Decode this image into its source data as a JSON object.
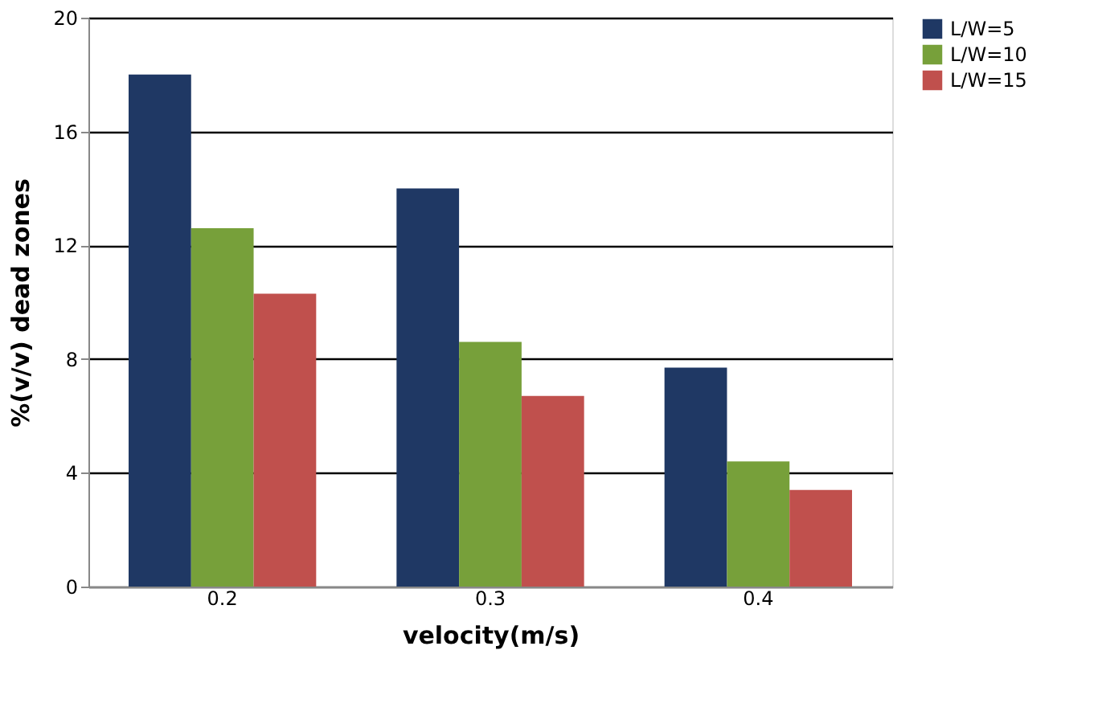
{
  "chart_data": {
    "type": "bar",
    "xlabel": "velocity(m/s)",
    "ylabel": "%(v/v)  dead zones",
    "categories": [
      "0.2",
      "0.3",
      "0.4"
    ],
    "series": [
      {
        "name": "L/W=5",
        "color": "#1f3864",
        "values": [
          18.0,
          14.0,
          7.7
        ]
      },
      {
        "name": "L/W=10",
        "color": "#77a03a",
        "values": [
          12.6,
          8.6,
          4.4
        ]
      },
      {
        "name": "L/W=15",
        "color": "#c0504d",
        "values": [
          10.3,
          6.7,
          3.4
        ]
      }
    ],
    "ylim": [
      0,
      20
    ],
    "yticks": [
      0,
      4,
      8,
      12,
      16,
      20
    ],
    "grid": "y",
    "legend": "right"
  }
}
